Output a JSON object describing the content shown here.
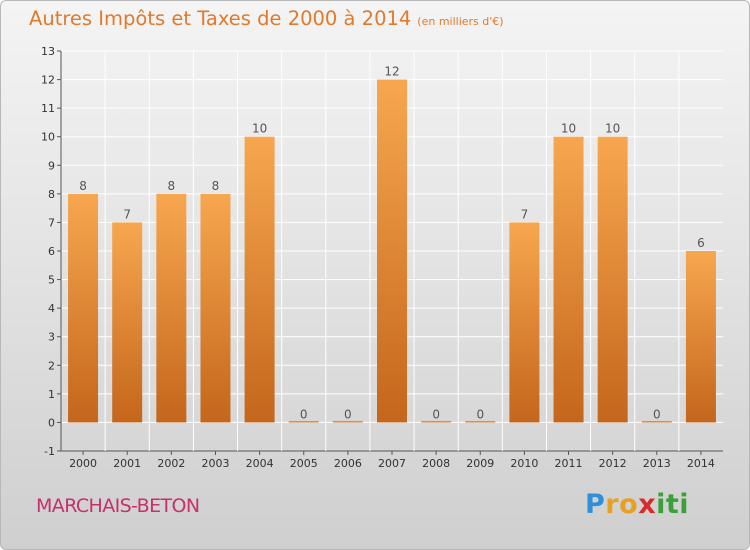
{
  "header": {
    "title": "Autres Impôts et Taxes de 2000 à 2014",
    "subtitle": "(en milliers d'€)"
  },
  "footer": {
    "commune": "MARCHAIS-BETON",
    "logo_letters": [
      "P",
      "r",
      "o",
      "x",
      "i",
      "t",
      "i"
    ],
    "logo_colors": [
      "#2f8fd8",
      "#e8a020",
      "#e8a020",
      "#d92b2b",
      "#3aa13a",
      "#3aa13a",
      "#3aa13a"
    ]
  },
  "colors": {
    "bar_light": "#f7a74f",
    "bar_dark": "#c4661c",
    "grid": "#ffffff",
    "axis": "#555555",
    "title": "#e07a2c",
    "commune": "#c7306a"
  },
  "chart_data": {
    "type": "bar",
    "categories": [
      "2000",
      "2001",
      "2002",
      "2003",
      "2004",
      "2005",
      "2006",
      "2007",
      "2008",
      "2009",
      "2010",
      "2011",
      "2012",
      "2013",
      "2014"
    ],
    "values": [
      8,
      7,
      8,
      8,
      10,
      0,
      0,
      12,
      0,
      0,
      7,
      10,
      10,
      0,
      6
    ],
    "data_labels": [
      "8",
      "7",
      "8",
      "8",
      "10",
      "0",
      "0",
      "12",
      "0",
      "0",
      "7",
      "10",
      "10",
      "0",
      "6"
    ],
    "title": "Autres Impôts et Taxes de 2000 à 2014",
    "xlabel": "",
    "ylabel": "",
    "ylim": [
      -1,
      13
    ],
    "yticks": [
      "-1",
      "0",
      "1",
      "2",
      "3",
      "4",
      "5",
      "6",
      "7",
      "8",
      "9",
      "10",
      "11",
      "12",
      "13"
    ],
    "grid": true
  }
}
